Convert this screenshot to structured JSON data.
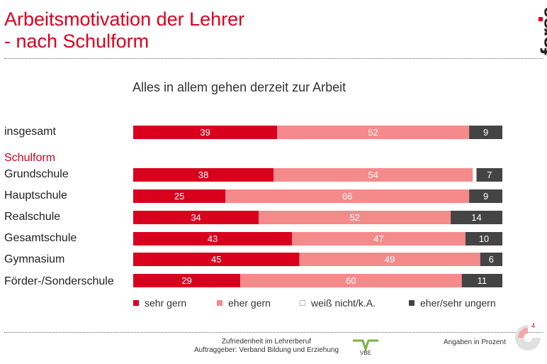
{
  "title": {
    "line1": "Arbeitsmotivation der Lehrer",
    "line2": "- nach Schulform"
  },
  "logo": {
    "text": "forsa"
  },
  "chart_data": {
    "type": "bar",
    "orientation": "horizontal",
    "stacked": true,
    "title": "Alles in allem gehen derzeit zur Arbeit",
    "section_label": "Schulform",
    "categories": [
      "insgesamt",
      "Grundschule",
      "Hauptschule",
      "Realschule",
      "Gesamtschule",
      "Gymnasium",
      "Förder-/Sonderschule"
    ],
    "series": [
      {
        "name": "sehr gern",
        "color": "#d9001e",
        "label_color": "#ffffff",
        "values": [
          39,
          38,
          25,
          34,
          43,
          45,
          29
        ]
      },
      {
        "name": "eher gern",
        "color": "#f58a8a",
        "label_color": "#ffffff",
        "values": [
          52,
          54,
          66,
          52,
          47,
          49,
          60
        ]
      },
      {
        "name": "weiß nicht/k.A.",
        "color": "#ffffff",
        "label_color": "#333333",
        "values": [
          0,
          1,
          0,
          0,
          0,
          0,
          0
        ]
      },
      {
        "name": "eher/sehr ungern",
        "color": "#444444",
        "label_color": "#ffffff",
        "values": [
          9,
          7,
          9,
          14,
          10,
          6,
          11
        ]
      }
    ],
    "xlim": [
      0,
      100
    ],
    "units": "Prozent"
  },
  "footer": {
    "line1": "Zufriedenheit im Lehrerberuf",
    "line2": "Auftraggeber: Verband Bildung und Erziehung",
    "note": "Angaben in Prozent",
    "page": "4",
    "vbe_logo": "VBE"
  }
}
